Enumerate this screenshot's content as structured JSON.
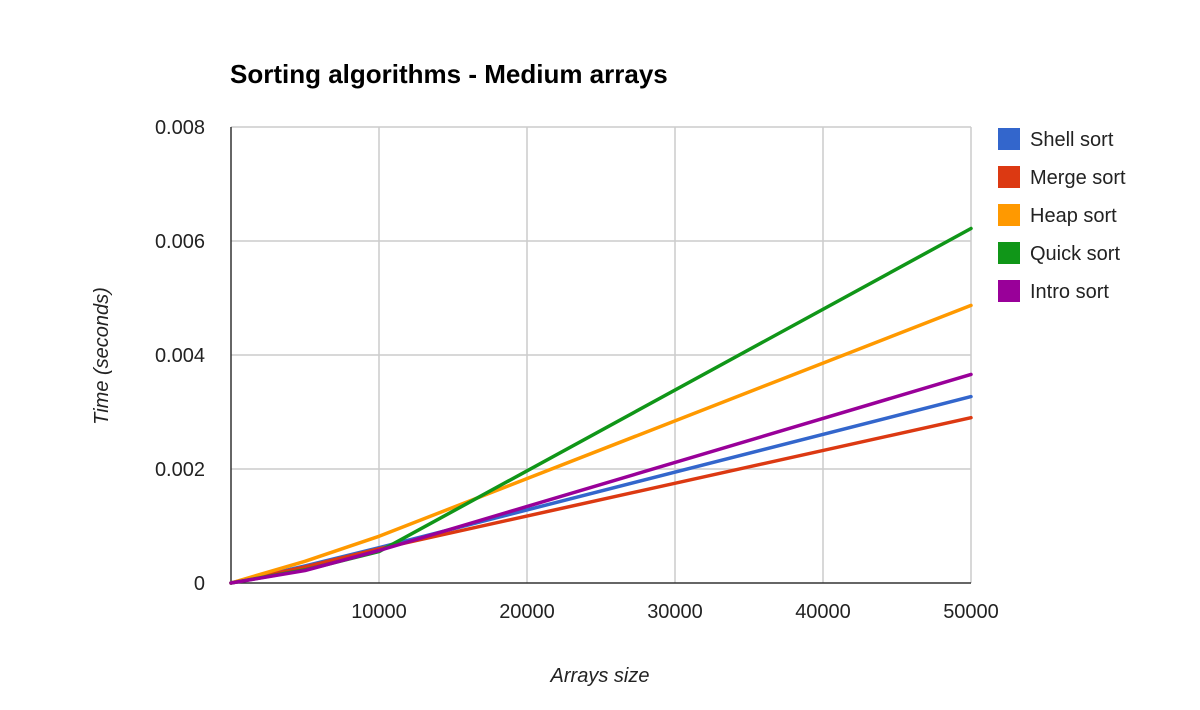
{
  "chart_data": {
    "type": "line",
    "title": "Sorting algorithms - Medium arrays",
    "xlabel": "Arrays size",
    "ylabel": "Time (seconds)",
    "xlim": [
      0,
      50000
    ],
    "ylim": [
      0,
      0.008
    ],
    "x_ticks": [
      "10000",
      "20000",
      "30000",
      "40000",
      "50000"
    ],
    "y_ticks": [
      "0",
      "0.002",
      "0.004",
      "0.006",
      "0.008"
    ],
    "grid": true,
    "legend_position": "right",
    "x": [
      0,
      5000,
      10000,
      50000
    ],
    "series": [
      {
        "name": "Shell sort",
        "color": "#3366cc",
        "values": [
          0,
          0.0003,
          0.00062,
          0.00327
        ]
      },
      {
        "name": "Merge sort",
        "color": "#dc3912",
        "values": [
          0,
          0.00028,
          0.0006,
          0.0029
        ]
      },
      {
        "name": "Heap sort",
        "color": "#ff9900",
        "values": [
          0,
          0.00038,
          0.00082,
          0.00487
        ]
      },
      {
        "name": "Quick sort",
        "color": "#109618",
        "values": [
          0,
          0.00023,
          0.00055,
          0.00622
        ]
      },
      {
        "name": "Intro sort",
        "color": "#990099",
        "values": [
          0,
          0.00022,
          0.00057,
          0.00366
        ]
      }
    ]
  }
}
